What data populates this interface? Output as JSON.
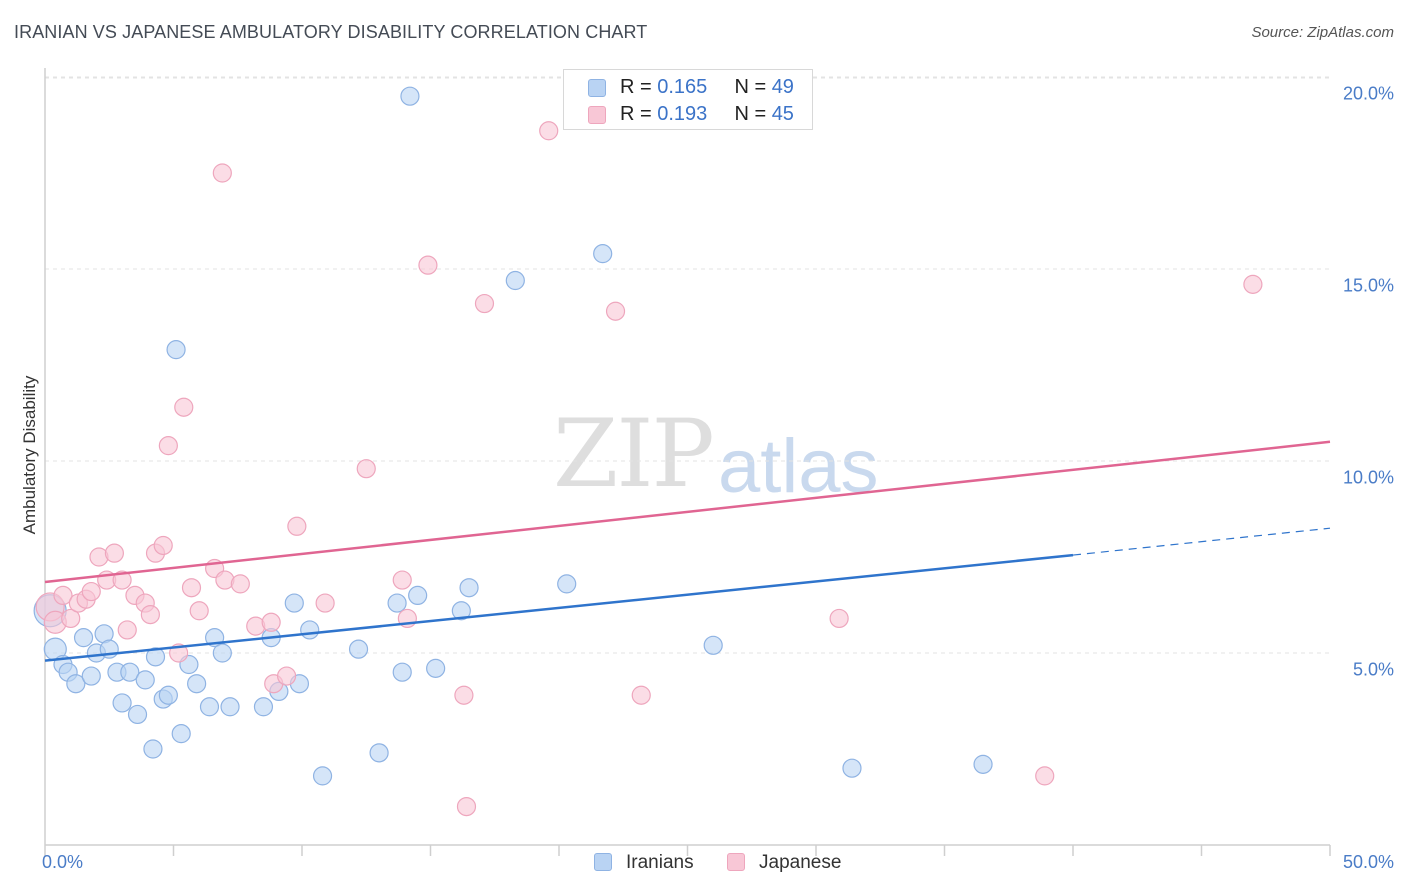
{
  "header": {
    "title": "IRANIAN VS JAPANESE AMBULATORY DISABILITY CORRELATION CHART",
    "source": "Source: ZipAtlas.com"
  },
  "watermark": {
    "part1": "ZIP",
    "part2": "atlas"
  },
  "legend": {
    "rows": [
      {
        "r_label": "R = ",
        "r_value": "0.165",
        "n_label": "N = ",
        "n_value": "49"
      },
      {
        "r_label": "R = ",
        "r_value": "0.193",
        "n_label": "N = ",
        "n_value": "45"
      }
    ],
    "bottom": [
      "Iranians",
      "Japanese"
    ]
  },
  "colors": {
    "iranians_fill": "#b9d3f3",
    "iranians_stroke": "#8fb3e3",
    "iranians_line": "#2f74cc",
    "japanese_fill": "#f8c7d6",
    "japanese_stroke": "#eea6bd",
    "japanese_line": "#e06592",
    "tick_text": "#4a7cc7",
    "grid": "#e3e3e3"
  },
  "chart_data": {
    "type": "scatter",
    "title": "IRANIAN VS JAPANESE AMBULATORY DISABILITY CORRELATION CHART",
    "xlabel": "",
    "ylabel": "Ambulatory Disability",
    "xlim": [
      0,
      50
    ],
    "ylim": [
      0,
      20.5
    ],
    "x_tick_labels": [
      "0.0%",
      "50.0%"
    ],
    "y_ticks": [
      5,
      10,
      15,
      20
    ],
    "y_tick_labels": [
      "5.0%",
      "10.0%",
      "15.0%",
      "20.0%"
    ],
    "series": [
      {
        "name": "Iranians",
        "r": 0.165,
        "n": 49,
        "trend": {
          "x0": 0,
          "y0": 4.8,
          "x1": 40,
          "y1": 7.55,
          "dash_to_x": 50,
          "dash_to_y": 8.25
        },
        "points": [
          [
            0.2,
            6.1,
            16
          ],
          [
            0.4,
            5.1,
            11
          ],
          [
            0.7,
            4.7,
            9
          ],
          [
            0.9,
            4.5,
            9
          ],
          [
            1.2,
            4.2,
            9
          ],
          [
            1.5,
            5.4,
            9
          ],
          [
            1.8,
            4.4,
            9
          ],
          [
            2.0,
            5.0,
            9
          ],
          [
            2.3,
            5.5,
            9
          ],
          [
            2.5,
            5.1,
            9
          ],
          [
            2.8,
            4.5,
            9
          ],
          [
            3.0,
            3.7,
            9
          ],
          [
            3.3,
            4.5,
            9
          ],
          [
            3.6,
            3.4,
            9
          ],
          [
            3.9,
            4.3,
            9
          ],
          [
            4.2,
            2.5,
            9
          ],
          [
            4.3,
            4.9,
            9
          ],
          [
            4.6,
            3.8,
            9
          ],
          [
            4.8,
            3.9,
            9
          ],
          [
            5.1,
            12.9,
            9
          ],
          [
            5.3,
            2.9,
            9
          ],
          [
            5.6,
            4.7,
            9
          ],
          [
            5.9,
            4.2,
            9
          ],
          [
            6.4,
            3.6,
            9
          ],
          [
            6.6,
            5.4,
            9
          ],
          [
            6.9,
            5.0,
            9
          ],
          [
            7.2,
            3.6,
            9
          ],
          [
            8.5,
            3.6,
            9
          ],
          [
            8.8,
            5.4,
            9
          ],
          [
            9.1,
            4.0,
            9
          ],
          [
            9.7,
            6.3,
            9
          ],
          [
            9.9,
            4.2,
            9
          ],
          [
            10.3,
            5.6,
            9
          ],
          [
            10.8,
            1.8,
            9
          ],
          [
            12.2,
            5.1,
            9
          ],
          [
            13.0,
            2.4,
            9
          ],
          [
            13.7,
            6.3,
            9
          ],
          [
            13.9,
            4.5,
            9
          ],
          [
            14.2,
            19.5,
            9
          ],
          [
            14.5,
            6.5,
            9
          ],
          [
            15.2,
            4.6,
            9
          ],
          [
            16.2,
            6.1,
            9
          ],
          [
            16.5,
            6.7,
            9
          ],
          [
            18.3,
            14.7,
            9
          ],
          [
            20.3,
            6.8,
            9
          ],
          [
            21.7,
            15.4,
            9
          ],
          [
            26.0,
            5.2,
            9
          ],
          [
            31.4,
            2.0,
            9
          ],
          [
            36.5,
            2.1,
            9
          ]
        ]
      },
      {
        "name": "Japanese",
        "r": 0.193,
        "n": 45,
        "trend": {
          "x0": 0,
          "y0": 6.85,
          "x1": 50,
          "y1": 10.5
        },
        "points": [
          [
            0.2,
            6.2,
            14
          ],
          [
            0.4,
            5.8,
            11
          ],
          [
            0.7,
            6.5,
            9
          ],
          [
            1.0,
            5.9,
            9
          ],
          [
            1.3,
            6.3,
            9
          ],
          [
            1.6,
            6.4,
            9
          ],
          [
            1.8,
            6.6,
            9
          ],
          [
            2.1,
            7.5,
            9
          ],
          [
            2.4,
            6.9,
            9
          ],
          [
            2.7,
            7.6,
            9
          ],
          [
            3.0,
            6.9,
            9
          ],
          [
            3.2,
            5.6,
            9
          ],
          [
            3.5,
            6.5,
            9
          ],
          [
            3.9,
            6.3,
            9
          ],
          [
            4.1,
            6.0,
            9
          ],
          [
            4.3,
            7.6,
            9
          ],
          [
            4.6,
            7.8,
            9
          ],
          [
            4.8,
            10.4,
            9
          ],
          [
            5.2,
            5.0,
            9
          ],
          [
            5.4,
            11.4,
            9
          ],
          [
            5.7,
            6.7,
            9
          ],
          [
            6.0,
            6.1,
            9
          ],
          [
            6.6,
            7.2,
            9
          ],
          [
            6.9,
            17.5,
            9
          ],
          [
            7.0,
            6.9,
            9
          ],
          [
            7.6,
            6.8,
            9
          ],
          [
            8.2,
            5.7,
            9
          ],
          [
            8.8,
            5.8,
            9
          ],
          [
            8.9,
            4.2,
            9
          ],
          [
            9.4,
            4.4,
            9
          ],
          [
            9.8,
            8.3,
            9
          ],
          [
            10.9,
            6.3,
            9
          ],
          [
            12.5,
            9.8,
            9
          ],
          [
            13.9,
            6.9,
            9
          ],
          [
            14.1,
            5.9,
            9
          ],
          [
            14.9,
            15.1,
            9
          ],
          [
            16.3,
            3.9,
            9
          ],
          [
            16.4,
            1.0,
            9
          ],
          [
            17.1,
            14.1,
            9
          ],
          [
            19.6,
            18.6,
            9
          ],
          [
            22.2,
            13.9,
            9
          ],
          [
            23.2,
            3.9,
            9
          ],
          [
            30.9,
            5.9,
            9
          ],
          [
            38.9,
            1.8,
            9
          ],
          [
            47.0,
            14.6,
            9
          ]
        ]
      }
    ]
  }
}
